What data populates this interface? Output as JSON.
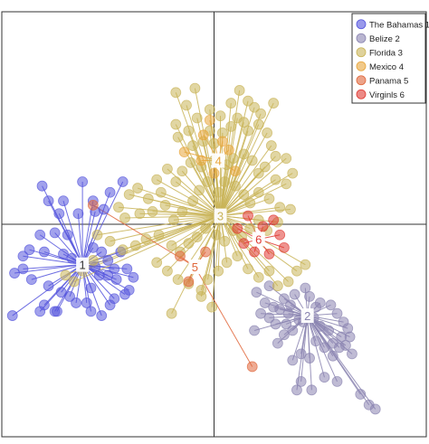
{
  "chart_data": {
    "type": "scatter",
    "title": "",
    "xlabel": "",
    "ylabel": "",
    "xlim": [
      -1.0,
      1.0
    ],
    "ylim": [
      -1.0,
      1.0
    ],
    "grid": false,
    "legend_position": "top-right",
    "axis_lines": {
      "x": 0.0,
      "y": 0.0
    },
    "series": [
      {
        "name": "The Bahamas 1",
        "centroid_label": "1",
        "color": "#5555dd",
        "centroid": [
          -0.62,
          -0.19
        ],
        "points": [
          [
            -0.81,
            0.18
          ],
          [
            -0.62,
            0.2
          ],
          [
            -0.71,
            0.11
          ],
          [
            -0.78,
            0.11
          ],
          [
            -0.73,
            0.05
          ],
          [
            -0.64,
            0.05
          ],
          [
            -0.57,
            0.11
          ],
          [
            -0.52,
            0.07
          ],
          [
            -0.49,
            0.15
          ],
          [
            -0.43,
            0.2
          ],
          [
            -0.56,
            0.06
          ],
          [
            -0.69,
            -0.05
          ],
          [
            -0.75,
            -0.04
          ],
          [
            -0.82,
            -0.05
          ],
          [
            -0.87,
            -0.12
          ],
          [
            -0.9,
            -0.15
          ],
          [
            -0.8,
            -0.13
          ],
          [
            -0.71,
            -0.14
          ],
          [
            -0.67,
            -0.16
          ],
          [
            -0.9,
            -0.21
          ],
          [
            -0.94,
            -0.23
          ],
          [
            -0.86,
            -0.26
          ],
          [
            -0.78,
            -0.29
          ],
          [
            -0.72,
            -0.32
          ],
          [
            -0.68,
            -0.34
          ],
          [
            -0.8,
            -0.38
          ],
          [
            -0.82,
            -0.41
          ],
          [
            -0.95,
            -0.43
          ],
          [
            -0.75,
            -0.41
          ],
          [
            -0.74,
            -0.41
          ],
          [
            -0.65,
            -0.37
          ],
          [
            -0.6,
            -0.37
          ],
          [
            -0.58,
            -0.41
          ],
          [
            -0.53,
            -0.43
          ],
          [
            -0.49,
            -0.38
          ],
          [
            -0.47,
            -0.35
          ],
          [
            -0.42,
            -0.33
          ],
          [
            -0.46,
            -0.26
          ],
          [
            -0.5,
            -0.24
          ],
          [
            -0.47,
            -0.21
          ],
          [
            -0.54,
            -0.24
          ],
          [
            -0.58,
            -0.3
          ],
          [
            -0.57,
            -0.11
          ],
          [
            -0.53,
            -0.13
          ],
          [
            -0.56,
            -0.2
          ],
          [
            -0.5,
            -0.17
          ],
          [
            -0.44,
            -0.13
          ],
          [
            -0.41,
            -0.21
          ],
          [
            -0.38,
            -0.25
          ],
          [
            -0.4,
            -0.31
          ]
        ]
      },
      {
        "name": "Belize 2",
        "centroid_label": "2",
        "color": "#8a84b0",
        "centroid": [
          0.44,
          -0.43
        ],
        "points": [
          [
            0.2,
            -0.32
          ],
          [
            0.24,
            -0.37
          ],
          [
            0.22,
            -0.42
          ],
          [
            0.26,
            -0.44
          ],
          [
            0.19,
            -0.5
          ],
          [
            0.29,
            -0.47
          ],
          [
            0.28,
            -0.39
          ],
          [
            0.33,
            -0.35
          ],
          [
            0.36,
            -0.38
          ],
          [
            0.34,
            -0.47
          ],
          [
            0.3,
            -0.56
          ],
          [
            0.37,
            -0.5
          ],
          [
            0.38,
            -0.33
          ],
          [
            0.45,
            -0.34
          ],
          [
            0.48,
            -0.39
          ],
          [
            0.5,
            -0.37
          ],
          [
            0.55,
            -0.38
          ],
          [
            0.58,
            -0.42
          ],
          [
            0.61,
            -0.46
          ],
          [
            0.63,
            -0.49
          ],
          [
            0.64,
            -0.53
          ],
          [
            0.62,
            -0.57
          ],
          [
            0.59,
            -0.58
          ],
          [
            0.56,
            -0.56
          ],
          [
            0.52,
            -0.58
          ],
          [
            0.48,
            -0.55
          ],
          [
            0.45,
            -0.63
          ],
          [
            0.41,
            -0.61
          ],
          [
            0.37,
            -0.64
          ],
          [
            0.41,
            -0.74
          ],
          [
            0.39,
            -0.78
          ],
          [
            0.46,
            -0.78
          ],
          [
            0.52,
            -0.72
          ],
          [
            0.58,
            -0.74
          ],
          [
            0.65,
            -0.61
          ],
          [
            0.69,
            -0.8
          ],
          [
            0.73,
            -0.85
          ],
          [
            0.76,
            -0.87
          ],
          [
            0.54,
            -0.5
          ],
          [
            0.5,
            -0.48
          ],
          [
            0.47,
            -0.44
          ],
          [
            0.42,
            -0.46
          ],
          [
            0.4,
            -0.45
          ],
          [
            0.35,
            -0.42
          ],
          [
            0.31,
            -0.4
          ],
          [
            0.26,
            -0.29
          ],
          [
            0.43,
            -0.3
          ],
          [
            0.6,
            -0.53
          ],
          [
            0.56,
            -0.62
          ],
          [
            0.33,
            -0.52
          ]
        ]
      },
      {
        "name": "Florida 3",
        "centroid_label": "3",
        "color": "#c9b458",
        "centroid": [
          0.03,
          0.04
        ],
        "points": [
          [
            -0.18,
            0.47
          ],
          [
            -0.17,
            0.41
          ],
          [
            -0.12,
            0.44
          ],
          [
            -0.08,
            0.5
          ],
          [
            -0.02,
            0.44
          ],
          [
            -0.05,
            0.39
          ],
          [
            -0.1,
            0.37
          ],
          [
            0.0,
            0.38
          ],
          [
            0.04,
            0.43
          ],
          [
            0.08,
            0.46
          ],
          [
            0.11,
            0.5
          ],
          [
            0.14,
            0.48
          ],
          [
            0.16,
            0.44
          ],
          [
            0.21,
            0.47
          ],
          [
            0.25,
            0.43
          ],
          [
            0.27,
            0.37
          ],
          [
            0.29,
            0.32
          ],
          [
            0.34,
            0.31
          ],
          [
            0.37,
            0.24
          ],
          [
            0.34,
            0.19
          ],
          [
            0.29,
            0.21
          ],
          [
            0.24,
            0.27
          ],
          [
            0.21,
            0.24
          ],
          [
            0.18,
            0.3
          ],
          [
            0.14,
            0.33
          ],
          [
            0.09,
            0.31
          ],
          [
            0.06,
            0.28
          ],
          [
            0.0,
            0.3
          ],
          [
            -0.06,
            0.27
          ],
          [
            -0.11,
            0.29
          ],
          [
            -0.15,
            0.25
          ],
          [
            -0.18,
            0.2
          ],
          [
            -0.22,
            0.26
          ],
          [
            -0.27,
            0.21
          ],
          [
            -0.25,
            0.15
          ],
          [
            -0.31,
            0.12
          ],
          [
            -0.36,
            0.17
          ],
          [
            -0.4,
            0.14
          ],
          [
            -0.45,
            0.08
          ],
          [
            -0.42,
            0.03
          ],
          [
            -0.35,
            0.05
          ],
          [
            -0.29,
            0.06
          ],
          [
            -0.23,
            0.09
          ],
          [
            -0.19,
            0.02
          ],
          [
            -0.15,
            0.06
          ],
          [
            -0.1,
            0.11
          ],
          [
            -0.07,
            0.16
          ],
          [
            -0.03,
            0.2
          ],
          [
            0.02,
            0.15
          ],
          [
            0.05,
            0.2
          ],
          [
            0.1,
            0.18
          ],
          [
            0.14,
            0.14
          ],
          [
            0.17,
            0.1
          ],
          [
            0.21,
            0.15
          ],
          [
            0.26,
            0.12
          ],
          [
            0.31,
            0.08
          ],
          [
            0.36,
            0.07
          ],
          [
            0.3,
            0.01
          ],
          [
            0.25,
            -0.03
          ],
          [
            0.21,
            0.02
          ],
          [
            0.17,
            -0.02
          ],
          [
            0.13,
            -0.06
          ],
          [
            0.09,
            -0.03
          ],
          [
            0.05,
            -0.08
          ],
          [
            0.01,
            -0.05
          ],
          [
            -0.04,
            -0.02
          ],
          [
            -0.08,
            -0.06
          ],
          [
            -0.12,
            -0.09
          ],
          [
            -0.16,
            -0.13
          ],
          [
            -0.2,
            -0.1
          ],
          [
            -0.26,
            -0.05
          ],
          [
            -0.32,
            -0.07
          ],
          [
            -0.37,
            -0.1
          ],
          [
            -0.43,
            -0.12
          ],
          [
            -0.49,
            -0.08
          ],
          [
            -0.55,
            -0.05
          ],
          [
            -0.57,
            -0.17
          ],
          [
            -0.62,
            -0.22
          ],
          [
            -0.66,
            -0.27
          ],
          [
            -0.7,
            -0.24
          ],
          [
            -0.27,
            -0.18
          ],
          [
            -0.22,
            -0.22
          ],
          [
            -0.17,
            -0.26
          ],
          [
            -0.12,
            -0.28
          ],
          [
            -0.06,
            -0.31
          ],
          [
            -0.03,
            -0.26
          ],
          [
            0.02,
            -0.22
          ],
          [
            0.06,
            -0.18
          ],
          [
            0.11,
            -0.15
          ],
          [
            0.16,
            -0.21
          ],
          [
            0.21,
            -0.25
          ],
          [
            0.26,
            -0.22
          ],
          [
            0.3,
            -0.29
          ],
          [
            0.35,
            -0.27
          ],
          [
            0.39,
            -0.22
          ],
          [
            0.43,
            -0.19
          ],
          [
            -0.06,
            -0.34
          ],
          [
            -0.01,
            -0.39
          ],
          [
            -0.2,
            -0.42
          ],
          [
            -0.18,
            0.62
          ],
          [
            -0.09,
            0.64
          ],
          [
            0.08,
            0.57
          ],
          [
            0.12,
            0.63
          ],
          [
            0.16,
            0.58
          ],
          [
            0.19,
            0.55
          ],
          [
            0.22,
            0.52
          ],
          [
            0.28,
            0.57
          ],
          [
            -0.02,
            0.54
          ],
          [
            0.03,
            0.51
          ],
          [
            -0.13,
            0.56
          ]
        ]
      },
      {
        "name": "Mexico 4",
        "centroid_label": "4",
        "color": "#e8a53a",
        "centroid": [
          0.02,
          0.3
        ],
        "points": [
          [
            -0.05,
            0.42
          ],
          [
            -0.02,
            0.49
          ],
          [
            0.04,
            0.39
          ],
          [
            0.07,
            0.35
          ],
          [
            -0.06,
            0.3
          ],
          [
            0.0,
            0.24
          ],
          [
            -0.14,
            0.34
          ],
          [
            0.1,
            0.25
          ]
        ]
      },
      {
        "name": "Panama 5",
        "centroid_label": "5",
        "color": "#e0663a",
        "centroid": [
          -0.09,
          -0.2
        ],
        "points": [
          [
            -0.57,
            0.09
          ],
          [
            -0.12,
            -0.27
          ],
          [
            0.18,
            -0.67
          ],
          [
            -0.04,
            -0.13
          ],
          [
            -0.16,
            -0.15
          ]
        ]
      },
      {
        "name": "Virginls 6",
        "centroid_label": "6",
        "color": "#e03a33",
        "centroid": [
          0.21,
          -0.07
        ],
        "points": [
          [
            0.28,
            0.02
          ],
          [
            0.16,
            0.04
          ],
          [
            0.23,
            -0.01
          ],
          [
            0.31,
            -0.05
          ],
          [
            0.33,
            -0.11
          ],
          [
            0.26,
            -0.14
          ],
          [
            0.19,
            -0.13
          ],
          [
            0.14,
            -0.09
          ],
          [
            0.11,
            -0.02
          ]
        ]
      }
    ]
  }
}
